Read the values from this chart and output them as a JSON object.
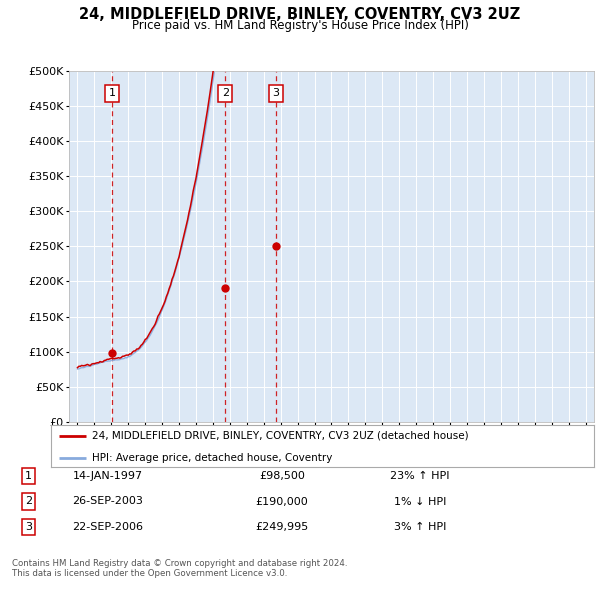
{
  "title": "24, MIDDLEFIELD DRIVE, BINLEY, COVENTRY, CV3 2UZ",
  "subtitle": "Price paid vs. HM Land Registry's House Price Index (HPI)",
  "plot_bg_color": "#dce8f5",
  "ylim": [
    0,
    500000
  ],
  "yticks": [
    0,
    50000,
    100000,
    150000,
    200000,
    250000,
    300000,
    350000,
    400000,
    450000,
    500000
  ],
  "xlim_start": 1994.5,
  "xlim_end": 2025.5,
  "transactions": [
    {
      "date_num": 1997.04,
      "price": 98500,
      "label": "1"
    },
    {
      "date_num": 2003.73,
      "price": 190000,
      "label": "2"
    },
    {
      "date_num": 2006.73,
      "price": 249995,
      "label": "3"
    }
  ],
  "transaction_details": [
    {
      "num": "1",
      "date": "14-JAN-1997",
      "price": "£98,500",
      "hpi": "23% ↑ HPI"
    },
    {
      "num": "2",
      "date": "26-SEP-2003",
      "price": "£190,000",
      "hpi": "1% ↓ HPI"
    },
    {
      "num": "3",
      "date": "22-SEP-2006",
      "price": "£249,995",
      "hpi": "3% ↑ HPI"
    }
  ],
  "legend_entries": [
    "24, MIDDLEFIELD DRIVE, BINLEY, COVENTRY, CV3 2UZ (detached house)",
    "HPI: Average price, detached house, Coventry"
  ],
  "footer": [
    "Contains HM Land Registry data © Crown copyright and database right 2024.",
    "This data is licensed under the Open Government Licence v3.0."
  ],
  "hpi_color": "#88aadd",
  "price_color": "#cc0000",
  "dashed_color": "#cc0000",
  "hpi_seed": 42,
  "price_seed": 99
}
